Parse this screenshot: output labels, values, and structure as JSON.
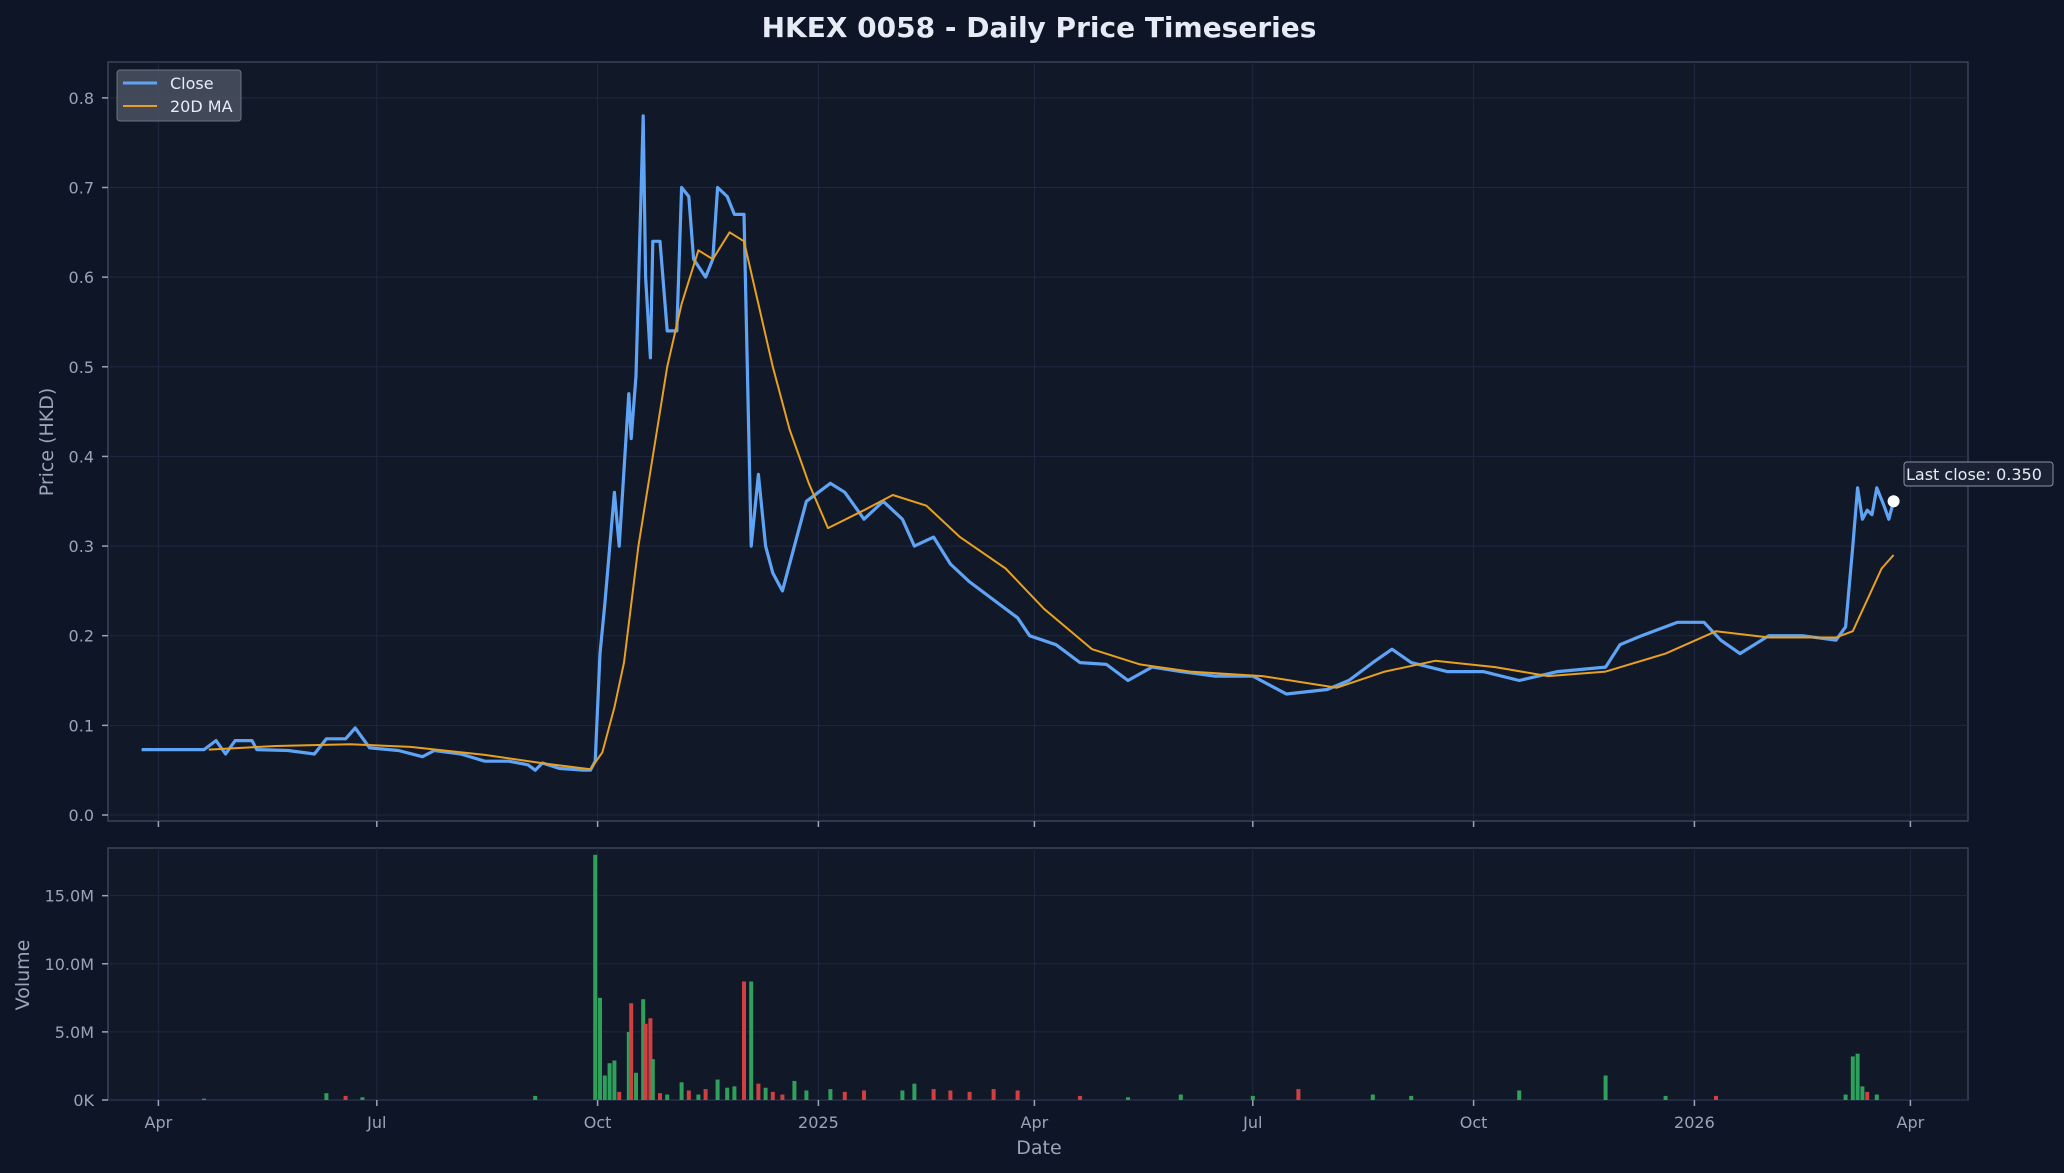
{
  "chart_data": {
    "type": "line",
    "title": "HKEX 0058 - Daily Price Timeseries",
    "price_panel": {
      "ylabel": "Price (HKD)",
      "ylim": [
        0,
        0.84
      ],
      "yticks": [
        "0.0",
        "0.1",
        "0.2",
        "0.3",
        "0.4",
        "0.5",
        "0.6",
        "0.7",
        "0.8"
      ],
      "grid": true,
      "legend_position": "top-left",
      "series": [
        {
          "name": "Close",
          "color": "#5fa3f5",
          "points": [
            [
              "2024-03-25",
              0.073
            ],
            [
              "2024-04-20",
              0.073
            ],
            [
              "2024-04-25",
              0.083
            ],
            [
              "2024-04-29",
              0.068
            ],
            [
              "2024-05-03",
              0.083
            ],
            [
              "2024-05-10",
              0.083
            ],
            [
              "2024-05-12",
              0.073
            ],
            [
              "2024-05-25",
              0.072
            ],
            [
              "2024-06-05",
              0.068
            ],
            [
              "2024-06-10",
              0.085
            ],
            [
              "2024-06-18",
              0.085
            ],
            [
              "2024-06-22",
              0.097
            ],
            [
              "2024-06-28",
              0.075
            ],
            [
              "2024-07-10",
              0.072
            ],
            [
              "2024-07-20",
              0.065
            ],
            [
              "2024-07-25",
              0.072
            ],
            [
              "2024-08-05",
              0.068
            ],
            [
              "2024-08-15",
              0.06
            ],
            [
              "2024-08-25",
              0.06
            ],
            [
              "2024-09-02",
              0.056
            ],
            [
              "2024-09-05",
              0.05
            ],
            [
              "2024-09-08",
              0.058
            ],
            [
              "2024-09-15",
              0.052
            ],
            [
              "2024-09-25",
              0.05
            ],
            [
              "2024-09-28",
              0.05
            ],
            [
              "2024-09-30",
              0.06
            ],
            [
              "2024-10-02",
              0.18
            ],
            [
              "2024-10-04",
              0.235
            ],
            [
              "2024-10-08",
              0.36
            ],
            [
              "2024-10-10",
              0.3
            ],
            [
              "2024-10-14",
              0.47
            ],
            [
              "2024-10-15",
              0.42
            ],
            [
              "2024-10-17",
              0.49
            ],
            [
              "2024-10-20",
              0.78
            ],
            [
              "2024-10-21",
              0.6
            ],
            [
              "2024-10-23",
              0.51
            ],
            [
              "2024-10-24",
              0.64
            ],
            [
              "2024-10-27",
              0.64
            ],
            [
              "2024-10-30",
              0.54
            ],
            [
              "2024-11-03",
              0.54
            ],
            [
              "2024-11-05",
              0.7
            ],
            [
              "2024-11-08",
              0.69
            ],
            [
              "2024-11-10",
              0.62
            ],
            [
              "2024-11-15",
              0.6
            ],
            [
              "2024-11-18",
              0.62
            ],
            [
              "2024-11-20",
              0.7
            ],
            [
              "2024-11-24",
              0.69
            ],
            [
              "2024-11-27",
              0.67
            ],
            [
              "2024-12-01",
              0.67
            ],
            [
              "2024-12-04",
              0.3
            ],
            [
              "2024-12-07",
              0.38
            ],
            [
              "2024-12-10",
              0.3
            ],
            [
              "2024-12-13",
              0.27
            ],
            [
              "2024-12-17",
              0.25
            ],
            [
              "2024-12-22",
              0.3
            ],
            [
              "2024-12-27",
              0.35
            ],
            [
              "2025-01-06",
              0.37
            ],
            [
              "2025-01-12",
              0.36
            ],
            [
              "2025-01-20",
              0.33
            ],
            [
              "2025-01-28",
              0.35
            ],
            [
              "2025-02-05",
              0.33
            ],
            [
              "2025-02-10",
              0.3
            ],
            [
              "2025-02-18",
              0.31
            ],
            [
              "2025-02-25",
              0.28
            ],
            [
              "2025-03-05",
              0.26
            ],
            [
              "2025-03-15",
              0.24
            ],
            [
              "2025-03-25",
              0.22
            ],
            [
              "2025-03-30",
              0.2
            ],
            [
              "2025-04-10",
              0.19
            ],
            [
              "2025-04-20",
              0.17
            ],
            [
              "2025-05-01",
              0.168
            ],
            [
              "2025-05-10",
              0.15
            ],
            [
              "2025-05-20",
              0.165
            ],
            [
              "2025-06-01",
              0.16
            ],
            [
              "2025-06-15",
              0.155
            ],
            [
              "2025-07-01",
              0.155
            ],
            [
              "2025-07-15",
              0.135
            ],
            [
              "2025-08-01",
              0.14
            ],
            [
              "2025-08-10",
              0.15
            ],
            [
              "2025-08-20",
              0.17
            ],
            [
              "2025-08-28",
              0.185
            ],
            [
              "2025-09-05",
              0.17
            ],
            [
              "2025-09-20",
              0.16
            ],
            [
              "2025-10-05",
              0.16
            ],
            [
              "2025-10-20",
              0.15
            ],
            [
              "2025-11-05",
              0.16
            ],
            [
              "2025-11-25",
              0.165
            ],
            [
              "2025-12-01",
              0.19
            ],
            [
              "2025-12-10",
              0.2
            ],
            [
              "2025-12-25",
              0.215
            ],
            [
              "2026-01-05",
              0.215
            ],
            [
              "2026-01-12",
              0.195
            ],
            [
              "2026-01-20",
              0.18
            ],
            [
              "2026-02-01",
              0.2
            ],
            [
              "2026-02-15",
              0.2
            ],
            [
              "2026-03-01",
              0.195
            ],
            [
              "2026-03-05",
              0.21
            ],
            [
              "2026-03-08",
              0.3
            ],
            [
              "2026-03-10",
              0.365
            ],
            [
              "2026-03-12",
              0.33
            ],
            [
              "2026-03-14",
              0.34
            ],
            [
              "2026-03-16",
              0.335
            ],
            [
              "2026-03-18",
              0.365
            ],
            [
              "2026-03-21",
              0.345
            ],
            [
              "2026-03-23",
              0.33
            ],
            [
              "2026-03-25",
              0.35
            ]
          ]
        },
        {
          "name": "20D MA",
          "color": "#e8a020",
          "points": [
            [
              "2024-04-22",
              0.073
            ],
            [
              "2024-05-20",
              0.077
            ],
            [
              "2024-06-20",
              0.079
            ],
            [
              "2024-07-15",
              0.076
            ],
            [
              "2024-08-15",
              0.067
            ],
            [
              "2024-09-10",
              0.057
            ],
            [
              "2024-09-28",
              0.051
            ],
            [
              "2024-10-03",
              0.07
            ],
            [
              "2024-10-08",
              0.12
            ],
            [
              "2024-10-12",
              0.17
            ],
            [
              "2024-10-18",
              0.3
            ],
            [
              "2024-10-24",
              0.4
            ],
            [
              "2024-10-30",
              0.5
            ],
            [
              "2024-11-05",
              0.57
            ],
            [
              "2024-11-12",
              0.63
            ],
            [
              "2024-11-18",
              0.62
            ],
            [
              "2024-11-25",
              0.65
            ],
            [
              "2024-12-01",
              0.64
            ],
            [
              "2024-12-07",
              0.57
            ],
            [
              "2024-12-13",
              0.5
            ],
            [
              "2024-12-20",
              0.43
            ],
            [
              "2024-12-28",
              0.37
            ],
            [
              "2025-01-05",
              0.32
            ],
            [
              "2025-01-20",
              0.34
            ],
            [
              "2025-02-01",
              0.357
            ],
            [
              "2025-02-15",
              0.345
            ],
            [
              "2025-03-01",
              0.31
            ],
            [
              "2025-03-20",
              0.275
            ],
            [
              "2025-04-05",
              0.23
            ],
            [
              "2025-04-25",
              0.185
            ],
            [
              "2025-05-15",
              0.168
            ],
            [
              "2025-06-05",
              0.16
            ],
            [
              "2025-07-05",
              0.155
            ],
            [
              "2025-08-05",
              0.142
            ],
            [
              "2025-08-25",
              0.16
            ],
            [
              "2025-09-15",
              0.172
            ],
            [
              "2025-10-10",
              0.165
            ],
            [
              "2025-11-01",
              0.155
            ],
            [
              "2025-11-25",
              0.16
            ],
            [
              "2025-12-20",
              0.18
            ],
            [
              "2026-01-10",
              0.205
            ],
            [
              "2026-02-01",
              0.198
            ],
            [
              "2026-03-01",
              0.198
            ],
            [
              "2026-03-08",
              0.205
            ],
            [
              "2026-03-14",
              0.24
            ],
            [
              "2026-03-20",
              0.275
            ],
            [
              "2026-03-25",
              0.29
            ]
          ]
        }
      ],
      "annotation": {
        "text": "Last close: 0.350",
        "date": "2026-03-25",
        "value": 0.35
      }
    },
    "volume_panel": {
      "ylabel": "Volume",
      "ylim": [
        0,
        18500000
      ],
      "yticks": [
        "0K",
        "5.0M",
        "10.0M",
        "15.0M"
      ],
      "up_color": "#2ea05a",
      "down_color": "#d04040",
      "bars": [
        [
          "2024-04-20",
          100000,
          "up"
        ],
        [
          "2024-06-10",
          500000,
          "up"
        ],
        [
          "2024-06-18",
          300000,
          "down"
        ],
        [
          "2024-06-25",
          200000,
          "up"
        ],
        [
          "2024-09-05",
          300000,
          "up"
        ],
        [
          "2024-09-30",
          18000000,
          "up"
        ],
        [
          "2024-10-02",
          7500000,
          "up"
        ],
        [
          "2024-10-04",
          1800000,
          "up"
        ],
        [
          "2024-10-06",
          2700000,
          "up"
        ],
        [
          "2024-10-08",
          2900000,
          "up"
        ],
        [
          "2024-10-10",
          600000,
          "down"
        ],
        [
          "2024-10-14",
          5000000,
          "up"
        ],
        [
          "2024-10-15",
          7100000,
          "down"
        ],
        [
          "2024-10-17",
          2000000,
          "up"
        ],
        [
          "2024-10-20",
          7400000,
          "up"
        ],
        [
          "2024-10-21",
          5600000,
          "down"
        ],
        [
          "2024-10-23",
          6000000,
          "down"
        ],
        [
          "2024-10-24",
          3000000,
          "up"
        ],
        [
          "2024-10-27",
          500000,
          "down"
        ],
        [
          "2024-10-30",
          400000,
          "up"
        ],
        [
          "2024-11-05",
          1300000,
          "up"
        ],
        [
          "2024-11-08",
          700000,
          "down"
        ],
        [
          "2024-11-12",
          400000,
          "up"
        ],
        [
          "2024-11-15",
          800000,
          "down"
        ],
        [
          "2024-11-20",
          1500000,
          "up"
        ],
        [
          "2024-11-24",
          900000,
          "up"
        ],
        [
          "2024-11-27",
          1000000,
          "up"
        ],
        [
          "2024-12-01",
          8700000,
          "down"
        ],
        [
          "2024-12-04",
          8700000,
          "up"
        ],
        [
          "2024-12-07",
          1200000,
          "down"
        ],
        [
          "2024-12-10",
          900000,
          "up"
        ],
        [
          "2024-12-13",
          600000,
          "down"
        ],
        [
          "2024-12-17",
          400000,
          "down"
        ],
        [
          "2024-12-22",
          1400000,
          "up"
        ],
        [
          "2024-12-27",
          700000,
          "up"
        ],
        [
          "2025-01-06",
          800000,
          "up"
        ],
        [
          "2025-01-12",
          600000,
          "down"
        ],
        [
          "2025-01-20",
          700000,
          "down"
        ],
        [
          "2025-02-05",
          700000,
          "up"
        ],
        [
          "2025-02-10",
          1200000,
          "up"
        ],
        [
          "2025-02-18",
          800000,
          "down"
        ],
        [
          "2025-02-25",
          700000,
          "down"
        ],
        [
          "2025-03-05",
          600000,
          "down"
        ],
        [
          "2025-03-15",
          800000,
          "down"
        ],
        [
          "2025-03-25",
          700000,
          "down"
        ],
        [
          "2025-04-20",
          300000,
          "down"
        ],
        [
          "2025-05-10",
          200000,
          "up"
        ],
        [
          "2025-06-01",
          400000,
          "up"
        ],
        [
          "2025-07-01",
          300000,
          "up"
        ],
        [
          "2025-07-20",
          800000,
          "down"
        ],
        [
          "2025-08-20",
          400000,
          "up"
        ],
        [
          "2025-09-05",
          300000,
          "up"
        ],
        [
          "2025-10-20",
          700000,
          "up"
        ],
        [
          "2025-11-25",
          1800000,
          "up"
        ],
        [
          "2025-12-20",
          300000,
          "up"
        ],
        [
          "2026-01-10",
          300000,
          "down"
        ],
        [
          "2026-03-05",
          400000,
          "up"
        ],
        [
          "2026-03-08",
          3200000,
          "up"
        ],
        [
          "2026-03-10",
          3400000,
          "up"
        ],
        [
          "2026-03-12",
          1000000,
          "up"
        ],
        [
          "2026-03-14",
          600000,
          "down"
        ],
        [
          "2026-03-18",
          400000,
          "up"
        ]
      ]
    },
    "xaxis": {
      "xlabel": "Date",
      "xlim": [
        "2024-03-11",
        "2026-04-25"
      ],
      "ticks": [
        [
          "2024-04-01",
          "Apr"
        ],
        [
          "2024-07-01",
          "Jul"
        ],
        [
          "2024-10-01",
          "Oct"
        ],
        [
          "2025-01-01",
          "2025"
        ],
        [
          "2025-04-01",
          "Apr"
        ],
        [
          "2025-07-01",
          "Jul"
        ],
        [
          "2025-10-01",
          "Oct"
        ],
        [
          "2026-01-01",
          "2026"
        ],
        [
          "2026-04-01",
          "Apr"
        ]
      ]
    }
  }
}
